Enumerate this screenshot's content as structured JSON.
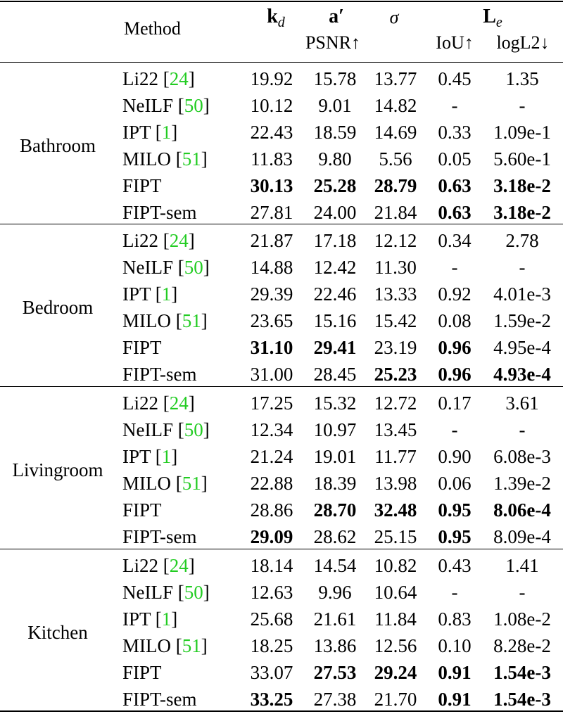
{
  "header": {
    "method": "Method",
    "kd_symbol": "k",
    "kd_sub": "d",
    "a_symbol": "a′",
    "psnr": "PSNR↑",
    "sigma": "σ",
    "le_symbol": "L",
    "le_sub": "e",
    "iou": "IoU↑",
    "logl2": "logL2↓"
  },
  "groups": [
    {
      "scene": "Bathroom",
      "rows": [
        {
          "method": "Li22 [",
          "cite": "24",
          "close": "]",
          "kd": "19.92",
          "a": "15.78",
          "sigma": "13.77",
          "iou": "0.45",
          "logl2": "1.35",
          "bold": []
        },
        {
          "method": "NeILF [",
          "cite": "50",
          "close": "]",
          "kd": "10.12",
          "a": "9.01",
          "sigma": "14.82",
          "iou": "-",
          "logl2": "-",
          "bold": []
        },
        {
          "method": "IPT [",
          "cite": "1",
          "close": "]",
          "kd": "22.43",
          "a": "18.59",
          "sigma": "14.69",
          "iou": "0.33",
          "logl2": "1.09e-1",
          "bold": []
        },
        {
          "method": "MILO [",
          "cite": "51",
          "close": "]",
          "kd": "11.83",
          "a": "9.80",
          "sigma": "5.56",
          "iou": "0.05",
          "logl2": "5.60e-1",
          "bold": []
        },
        {
          "method": "FIPT",
          "cite": "",
          "close": "",
          "kd": "30.13",
          "a": "25.28",
          "sigma": "28.79",
          "iou": "0.63",
          "logl2": "3.18e-2",
          "bold": [
            "kd",
            "a",
            "sigma",
            "iou",
            "logl2"
          ]
        },
        {
          "method": "FIPT-sem",
          "cite": "",
          "close": "",
          "kd": "27.81",
          "a": "24.00",
          "sigma": "21.84",
          "iou": "0.63",
          "logl2": "3.18e-2",
          "bold": [
            "iou",
            "logl2"
          ]
        }
      ]
    },
    {
      "scene": "Bedroom",
      "rows": [
        {
          "method": "Li22 [",
          "cite": "24",
          "close": "]",
          "kd": "21.87",
          "a": "17.18",
          "sigma": "12.12",
          "iou": "0.34",
          "logl2": "2.78",
          "bold": []
        },
        {
          "method": "NeILF [",
          "cite": "50",
          "close": "]",
          "kd": "14.88",
          "a": "12.42",
          "sigma": "11.30",
          "iou": "-",
          "logl2": "-",
          "bold": []
        },
        {
          "method": "IPT [",
          "cite": "1",
          "close": "]",
          "kd": "29.39",
          "a": "22.46",
          "sigma": "13.33",
          "iou": "0.92",
          "logl2": "4.01e-3",
          "bold": []
        },
        {
          "method": "MILO [",
          "cite": "51",
          "close": "]",
          "kd": "23.65",
          "a": "15.16",
          "sigma": "15.42",
          "iou": "0.08",
          "logl2": "1.59e-2",
          "bold": []
        },
        {
          "method": "FIPT",
          "cite": "",
          "close": "",
          "kd": "31.10",
          "a": "29.41",
          "sigma": "23.19",
          "iou": "0.96",
          "logl2": "4.95e-4",
          "bold": [
            "kd",
            "a",
            "iou"
          ]
        },
        {
          "method": "FIPT-sem",
          "cite": "",
          "close": "",
          "kd": "31.00",
          "a": "28.45",
          "sigma": "25.23",
          "iou": "0.96",
          "logl2": "4.93e-4",
          "bold": [
            "sigma",
            "iou",
            "logl2"
          ]
        }
      ]
    },
    {
      "scene": "Livingroom",
      "rows": [
        {
          "method": "Li22 [",
          "cite": "24",
          "close": "]",
          "kd": "17.25",
          "a": "15.32",
          "sigma": "12.72",
          "iou": "0.17",
          "logl2": "3.61",
          "bold": []
        },
        {
          "method": "NeILF [",
          "cite": "50",
          "close": "]",
          "kd": "12.34",
          "a": "10.97",
          "sigma": "13.45",
          "iou": "-",
          "logl2": "-",
          "bold": []
        },
        {
          "method": "IPT [",
          "cite": "1",
          "close": "]",
          "kd": "21.24",
          "a": "19.01",
          "sigma": "11.77",
          "iou": "0.90",
          "logl2": "6.08e-3",
          "bold": []
        },
        {
          "method": "MILO [",
          "cite": "51",
          "close": "]",
          "kd": "22.88",
          "a": "18.39",
          "sigma": "13.98",
          "iou": "0.06",
          "logl2": "1.39e-2",
          "bold": []
        },
        {
          "method": "FIPT",
          "cite": "",
          "close": "",
          "kd": "28.86",
          "a": "28.70",
          "sigma": "32.48",
          "iou": "0.95",
          "logl2": "8.06e-4",
          "bold": [
            "a",
            "sigma",
            "iou",
            "logl2"
          ]
        },
        {
          "method": "FIPT-sem",
          "cite": "",
          "close": "",
          "kd": "29.09",
          "a": "28.62",
          "sigma": "25.15",
          "iou": "0.95",
          "logl2": "8.09e-4",
          "bold": [
            "kd",
            "iou"
          ]
        }
      ]
    },
    {
      "scene": "Kitchen",
      "rows": [
        {
          "method": "Li22 [",
          "cite": "24",
          "close": "]",
          "kd": "18.14",
          "a": "14.54",
          "sigma": "10.82",
          "iou": "0.43",
          "logl2": "1.41",
          "bold": []
        },
        {
          "method": "NeILF [",
          "cite": "50",
          "close": "]",
          "kd": "12.63",
          "a": "9.96",
          "sigma": "10.64",
          "iou": "-",
          "logl2": "-",
          "bold": []
        },
        {
          "method": "IPT [",
          "cite": "1",
          "close": "]",
          "kd": "25.68",
          "a": "21.61",
          "sigma": "11.84",
          "iou": "0.83",
          "logl2": "1.08e-2",
          "bold": []
        },
        {
          "method": "MILO [",
          "cite": "51",
          "close": "]",
          "kd": "18.25",
          "a": "13.86",
          "sigma": "12.56",
          "iou": "0.10",
          "logl2": "8.28e-2",
          "bold": []
        },
        {
          "method": "FIPT",
          "cite": "",
          "close": "",
          "kd": "33.07",
          "a": "27.53",
          "sigma": "29.24",
          "iou": "0.91",
          "logl2": "1.54e-3",
          "bold": [
            "a",
            "sigma",
            "iou",
            "logl2"
          ]
        },
        {
          "method": "FIPT-sem",
          "cite": "",
          "close": "",
          "kd": "33.25",
          "a": "27.38",
          "sigma": "21.70",
          "iou": "0.91",
          "logl2": "1.54e-3",
          "bold": [
            "kd",
            "iou",
            "logl2"
          ]
        }
      ]
    }
  ],
  "colors": {
    "citation": "#22cc22",
    "text": "#000000",
    "rule": "#000000"
  }
}
